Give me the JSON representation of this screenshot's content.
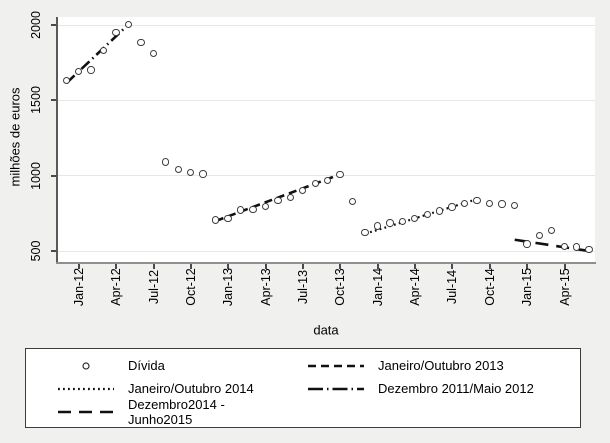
{
  "colors": {
    "background": "#f0f1ef",
    "plot_background": "#ffffff",
    "gridline": "#e6e8e7",
    "ink": "#111111",
    "axis": "#5a5a5a"
  },
  "chart_data": {
    "type": "scatter",
    "title": "",
    "xlabel": "data",
    "ylabel": "milhões de euros",
    "ylim": [
      450,
      2080
    ],
    "yticks": [
      500,
      1000,
      1500,
      2000
    ],
    "grid": true,
    "legend_position": "bottom",
    "xtick_labels": [
      "Jan-12",
      "Apr-12",
      "Jul-12",
      "Oct-12",
      "Jan-13",
      "Apr-13",
      "Jul-13",
      "Oct-13",
      "Jan-14",
      "Apr-14",
      "Jul-14",
      "Oct-14",
      "Jan-15",
      "Apr-15"
    ],
    "months": [
      "Dec-11",
      "Jan-12",
      "Feb-12",
      "Mar-12",
      "Apr-12",
      "May-12",
      "Jun-12",
      "Jul-12",
      "Aug-12",
      "Sep-12",
      "Oct-12",
      "Nov-12",
      "Dec-12",
      "Jan-13",
      "Feb-13",
      "Mar-13",
      "Apr-13",
      "May-13",
      "Jun-13",
      "Jul-13",
      "Aug-13",
      "Sep-13",
      "Oct-13",
      "Nov-13",
      "Dec-13",
      "Jan-14",
      "Feb-14",
      "Mar-14",
      "Apr-14",
      "May-14",
      "Jun-14",
      "Jul-14",
      "Aug-14",
      "Sep-14",
      "Oct-14",
      "Nov-14",
      "Dec-14",
      "Jan-15",
      "Feb-15",
      "Mar-15",
      "Apr-15",
      "May-15",
      "Jun-15"
    ],
    "series": [
      {
        "name": "Dívida",
        "marker": "circle",
        "values": [
          1630,
          1690,
          1700,
          1830,
          1950,
          2000,
          1880,
          1810,
          1090,
          1040,
          1020,
          1010,
          705,
          715,
          770,
          775,
          795,
          835,
          855,
          900,
          945,
          965,
          1005,
          825,
          620,
          665,
          685,
          695,
          715,
          740,
          765,
          790,
          815,
          835,
          815,
          810,
          800,
          545,
          600,
          635,
          530,
          525,
          510
        ]
      }
    ],
    "trend_lines": [
      {
        "name": "Dezembro 2011/Maio 2012",
        "style": "dashdot",
        "start_month": "Dec-11",
        "start_value": 1615,
        "end_month": "May-12",
        "end_value": 2005
      },
      {
        "name": "Janeiro/Outubro 2013",
        "style": "dashed",
        "start_month": "Dec-12",
        "start_value": 700,
        "end_month": "Oct-13",
        "end_value": 1010
      },
      {
        "name": "Janeiro/Outubro 2014",
        "style": "dotted",
        "start_month": "Dec-13",
        "start_value": 615,
        "end_month": "Sep-14",
        "end_value": 845
      },
      {
        "name": "Dezembro2014 - Junho2015",
        "style": "longdash",
        "start_month": "Dec-14",
        "start_value": 575,
        "end_month": "Jun-15",
        "end_value": 500
      }
    ],
    "legend_entries": [
      {
        "symbol": "circle",
        "label": "Dívida"
      },
      {
        "symbol": "dashed",
        "label": "Janeiro/Outubro 2013"
      },
      {
        "symbol": "dotted",
        "label": "Janeiro/Outubro 2014"
      },
      {
        "symbol": "dashdot",
        "label": "Dezembro 2011/Maio 2012"
      },
      {
        "symbol": "longdash",
        "label": "Dezembro2014 - Junho2015"
      }
    ]
  }
}
